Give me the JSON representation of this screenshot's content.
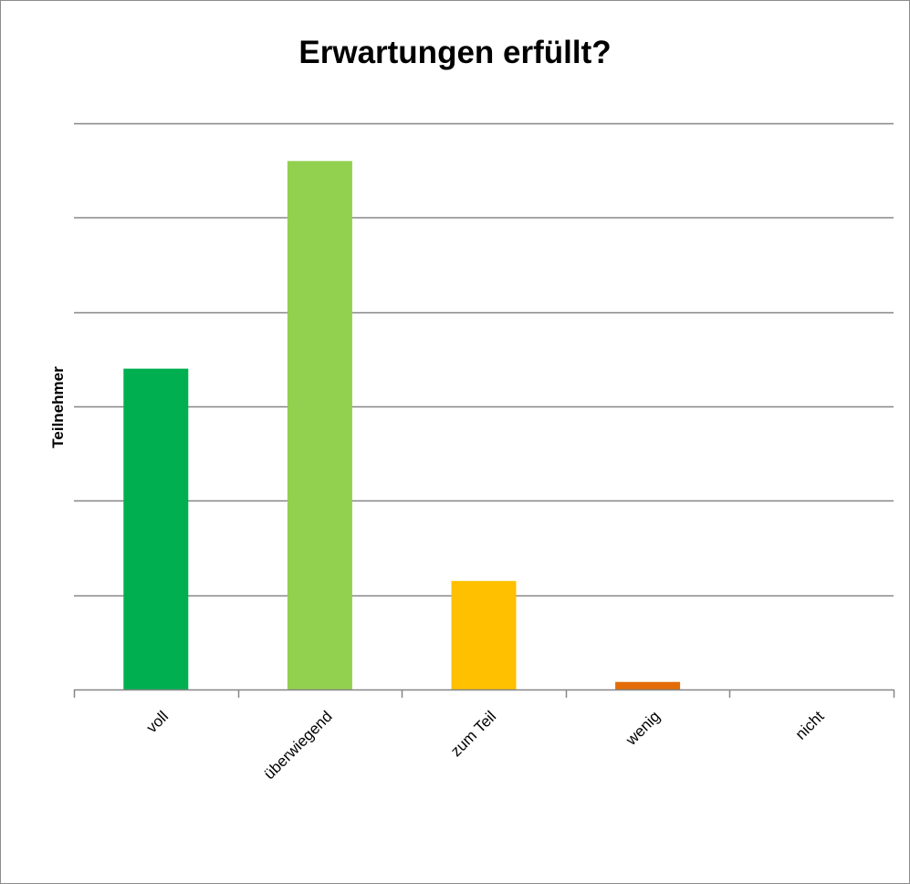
{
  "chart_data": {
    "type": "bar",
    "title": "Erwartungen erfüllt?",
    "xlabel": "",
    "ylabel": "Teilnehmer",
    "categories": [
      "voll",
      "überwiegend",
      "zum Teil",
      "wenig",
      "nicht"
    ],
    "values": [
      3.4,
      5.6,
      1.15,
      0.08,
      0
    ],
    "colors": [
      "#00b050",
      "#92d050",
      "#ffc000",
      "#e36c09",
      "#c00000"
    ],
    "ylim": [
      0,
      6
    ],
    "y_tick_count": 6,
    "grid": true,
    "y_tick_labels_shown": false
  }
}
